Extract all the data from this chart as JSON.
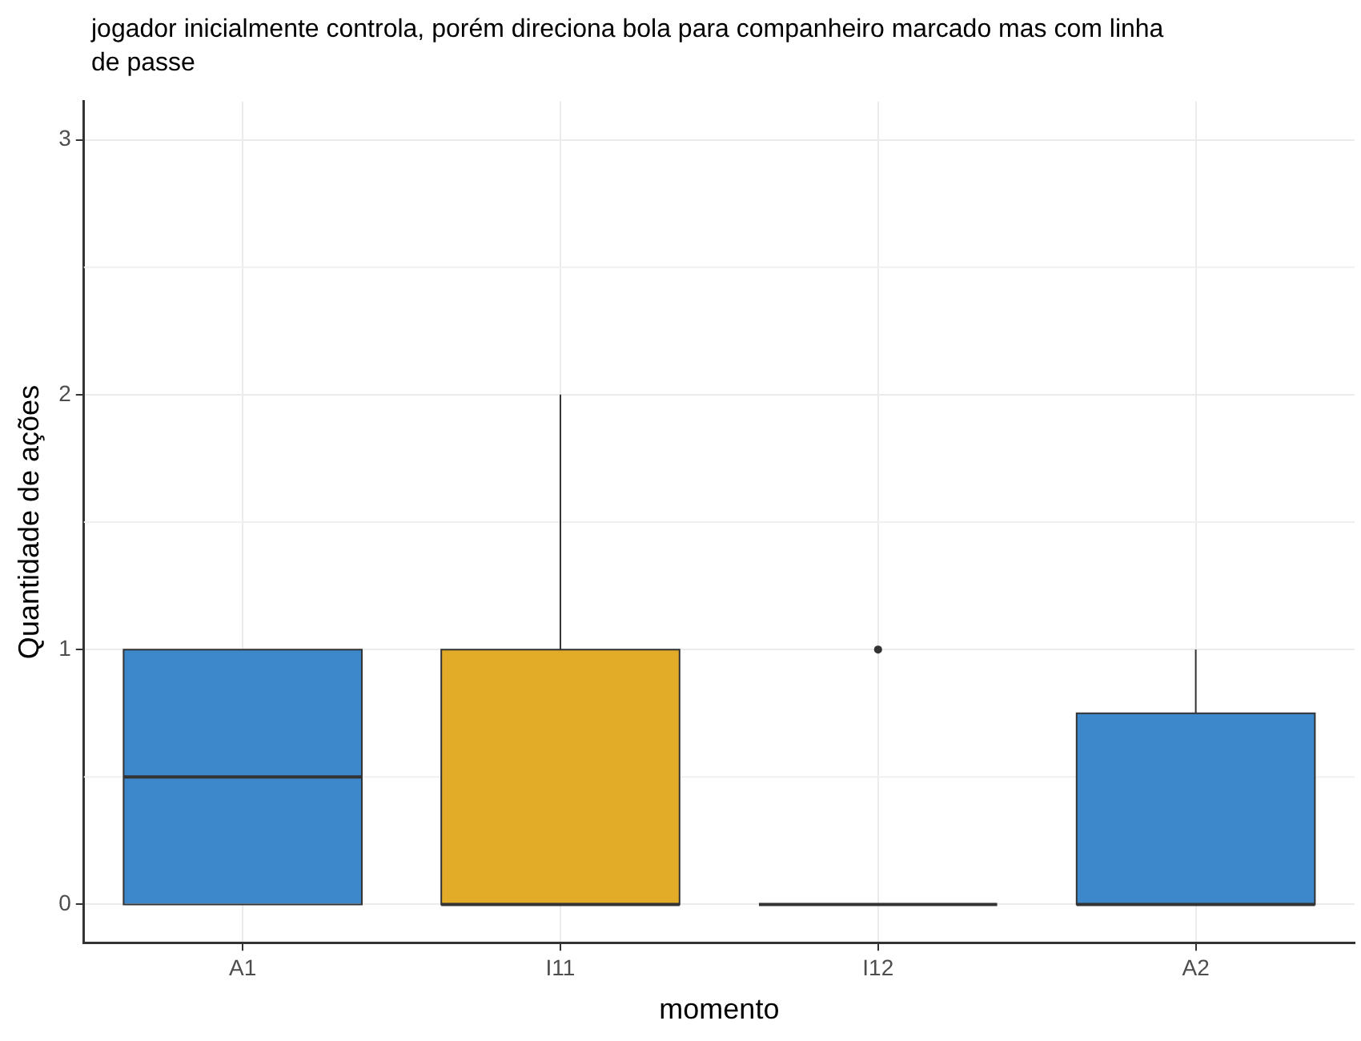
{
  "chart_data": {
    "type": "box",
    "title": "jogador inicialmente controla, porém direciona bola para companheiro marcado mas com linha de passe",
    "xlabel": "momento",
    "ylabel": "Quantidade de ações",
    "categories": [
      "A1",
      "I11",
      "I12",
      "A2"
    ],
    "colors": [
      "#3d87cb",
      "#e2ab28",
      "#333333",
      "#3d87cb"
    ],
    "boxes": [
      {
        "low": 0,
        "q1": 0,
        "median": 0.5,
        "q3": 1,
        "high": 1
      },
      {
        "low": 0,
        "q1": 0,
        "median": 0,
        "q3": 1,
        "high": 2
      },
      {
        "low": 0,
        "q1": 0,
        "median": 0,
        "q3": 0,
        "high": 0,
        "outliers": [
          1
        ]
      },
      {
        "low": 0,
        "q1": 0,
        "median": 0,
        "q3": 0.75,
        "high": 1
      }
    ],
    "ylim": [
      -0.15,
      3.15
    ],
    "yticks": [
      0,
      1,
      2,
      3
    ],
    "grid": true,
    "legend": false
  }
}
